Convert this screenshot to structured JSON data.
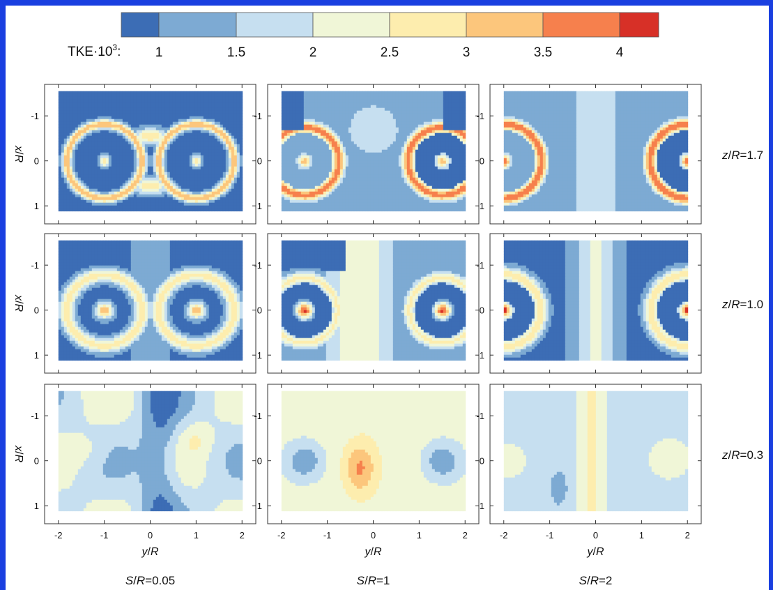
{
  "colorbar": {
    "title": "TKE·10",
    "title_exp": "3",
    "title_colon": ":",
    "ticks": [
      "1",
      "1.5",
      "2",
      "2.5",
      "3",
      "3.5",
      "4"
    ],
    "colors": [
      "#3c6db5",
      "#7daad3",
      "#c6dff0",
      "#f0f6d7",
      "#fdedae",
      "#fcc67c",
      "#f6804d",
      "#d73027"
    ]
  },
  "chart_data": {
    "type": "heatmap",
    "quantity": "TKE·10³",
    "levels": [
      1,
      1.5,
      2,
      2.5,
      3,
      3.5,
      4
    ],
    "xlabel": {
      "var": "y",
      "unit": "R"
    },
    "ylabel": {
      "var": "x",
      "unit": "R"
    },
    "xticks": [
      "-2",
      "-1",
      "0",
      "1",
      "2"
    ],
    "yticks": [
      "-1",
      "0",
      "1"
    ],
    "xlim": [
      -2.3,
      2.3
    ],
    "ylim": [
      -1.7,
      1.4
    ],
    "columns": [
      {
        "var": "S",
        "unit": "R",
        "value": "0.05",
        "hole_centers_y": [
          -1,
          1
        ]
      },
      {
        "var": "S",
        "unit": "R",
        "value": "1",
        "hole_centers_y": [
          -1.5,
          1.5
        ]
      },
      {
        "var": "S",
        "unit": "R",
        "value": "2",
        "hole_centers_y": [
          -2,
          2
        ]
      }
    ],
    "rows": [
      {
        "var": "z",
        "unit": "R",
        "value": "1.7"
      },
      {
        "var": "z",
        "unit": "R",
        "value": "1.0"
      },
      {
        "var": "z",
        "unit": "R",
        "value": "0.3"
      }
    ],
    "peak_tke_x1000": [
      [
        3.5,
        3.5,
        4.0
      ],
      [
        3.5,
        4.0,
        4.0
      ],
      [
        3.0,
        3.5,
        3.0
      ]
    ]
  }
}
